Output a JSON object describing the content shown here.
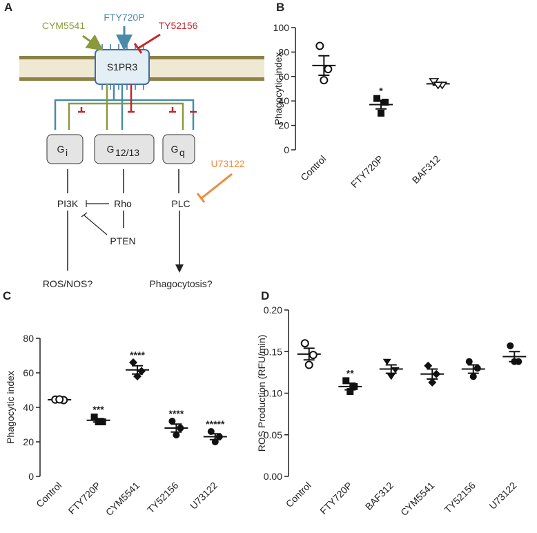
{
  "diagram": {
    "panel_label": "A",
    "ligands": {
      "agonist1": "CYM5541",
      "agonist2": "FTY720P",
      "antagonist": "TY52156",
      "inhibitor": "U73122"
    },
    "receptor": "S1PR3",
    "g_proteins": [
      {
        "label": "G",
        "sub": "i"
      },
      {
        "label": "G",
        "sub": "12/13"
      },
      {
        "label": "G",
        "sub": "q"
      }
    ],
    "effectors": {
      "pi3k": "PI3K",
      "rho": "Rho",
      "plc": "PLC",
      "pten": "PTEN"
    },
    "outcomes": [
      "ROS/NOS?",
      "Phagocytosis?"
    ]
  },
  "chart_data": [
    {
      "type": "dot",
      "panel_label": "B",
      "ylabel": "Phagocytic index",
      "categories": [
        "Control",
        "FTY720P",
        "BAF312"
      ],
      "markers": [
        "circle-open",
        "square",
        "triangle-open"
      ],
      "points": [
        [
          85,
          66,
          57
        ],
        [
          42,
          39,
          30
        ],
        [
          56,
          53,
          53
        ]
      ],
      "means": [
        69,
        37,
        54
      ],
      "sems": [
        8,
        3.5,
        1
      ],
      "annotations": [
        null,
        "*",
        null
      ],
      "ylim": [
        0,
        100
      ],
      "yticks": [
        0,
        20,
        40,
        60,
        80,
        100
      ]
    },
    {
      "type": "dot",
      "panel_label": "C",
      "ylabel": "Phagocytic index",
      "categories": [
        "Control",
        "FTY720P",
        "CYM5541",
        "TY52156",
        "U73122"
      ],
      "markers": [
        "circle-open",
        "square",
        "diamond",
        "circle",
        "circle"
      ],
      "points": [
        [
          44.5,
          44.2,
          44.6
        ],
        [
          34.4,
          31.6,
          31.6
        ],
        [
          66,
          61,
          58
        ],
        [
          32,
          28,
          24
        ],
        [
          26,
          23,
          20
        ]
      ],
      "means": [
        44.4,
        32.5,
        61.7,
        28,
        23
      ],
      "sems": [
        0.5,
        1,
        2.4,
        2.3,
        1.7
      ],
      "annotations": [
        null,
        "***",
        "****",
        "****",
        "*****"
      ],
      "ylim": [
        0,
        80
      ],
      "yticks": [
        0,
        20,
        40,
        60,
        80
      ]
    },
    {
      "type": "dot",
      "panel_label": "D",
      "ylabel": "ROS Production (RFU/min)",
      "categories": [
        "Control",
        "FTY720P",
        "BAF312",
        "CYM5541",
        "TY52156",
        "U73122"
      ],
      "markers": [
        "circle-open",
        "square",
        "triangle-down",
        "diamond",
        "circle",
        "circle"
      ],
      "points": [
        [
          0.16,
          0.146,
          0.134
        ],
        [
          0.115,
          0.108,
          0.102
        ],
        [
          0.138,
          0.128,
          0.12
        ],
        [
          0.133,
          0.123,
          0.113
        ],
        [
          0.138,
          0.13,
          0.12
        ],
        [
          0.157,
          0.138,
          0.138
        ]
      ],
      "means": [
        0.147,
        0.108,
        0.129,
        0.123,
        0.129,
        0.144
      ],
      "sems": [
        0.007,
        0.004,
        0.005,
        0.006,
        0.005,
        0.006
      ],
      "annotations": [
        null,
        "**",
        null,
        null,
        null,
        null
      ],
      "ylim": [
        0,
        0.2
      ],
      "yticks": [
        {
          "value": 0,
          "label": "0.00"
        },
        {
          "value": 0.05,
          "label": "0.05"
        },
        {
          "value": 0.1,
          "label": "0.10"
        },
        {
          "value": 0.15,
          "label": "0.15"
        },
        {
          "value": 0.2,
          "label": "0.20"
        }
      ]
    }
  ]
}
